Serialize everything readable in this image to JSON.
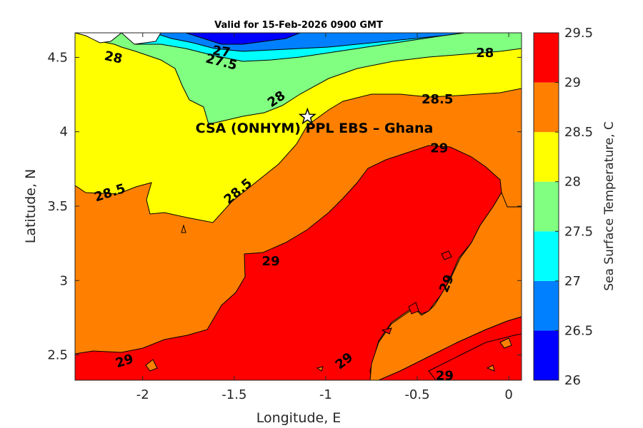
{
  "title": "Valid for 15-Feb-2026 0900 GMT",
  "xlabel": "Longitude, E",
  "ylabel": "Latitude, N",
  "colorbar_label": "Sea Surface Temperature, C",
  "site": {
    "label": "CSA (ONHYM) PPL EBS  – Ghana",
    "lon": -1.1,
    "lat": 4.1,
    "marker": "star-icon"
  },
  "x_ticks": [
    {
      "v": -2,
      "t": "-2"
    },
    {
      "v": -1.5,
      "t": "-1.5"
    },
    {
      "v": -1,
      "t": "-1"
    },
    {
      "v": -0.5,
      "t": "-0.5"
    },
    {
      "v": 0,
      "t": "0"
    }
  ],
  "y_ticks": [
    {
      "v": 2.5,
      "t": "2.5"
    },
    {
      "v": 3,
      "t": "3"
    },
    {
      "v": 3.5,
      "t": "3.5"
    },
    {
      "v": 4,
      "t": "4"
    },
    {
      "v": 4.5,
      "t": "4.5"
    }
  ],
  "colorbar": {
    "levels": [
      26,
      26.5,
      27,
      27.5,
      28,
      28.5,
      29,
      29.5
    ],
    "labels": [
      "26",
      "26.5",
      "27",
      "27.5",
      "28",
      "28.5",
      "29",
      "29.5"
    ],
    "colors": [
      "#0000ff",
      "#0080ff",
      "#00ffff",
      "#80ff80",
      "#ffff00",
      "#ff8000",
      "#ff0000"
    ]
  },
  "contour_labels": [
    {
      "t": "28",
      "lon": -2.16,
      "lat": 4.5,
      "rot": 12
    },
    {
      "t": "27",
      "lon": -1.57,
      "lat": 4.54,
      "rot": 8
    },
    {
      "t": "27.5",
      "lon": -1.57,
      "lat": 4.47,
      "rot": 14
    },
    {
      "t": "28",
      "lon": -1.27,
      "lat": 4.22,
      "rot": -34
    },
    {
      "t": "28.5",
      "lon": -0.39,
      "lat": 4.22,
      "rot": 0
    },
    {
      "t": "28",
      "lon": -0.13,
      "lat": 4.53,
      "rot": 0
    },
    {
      "t": "29",
      "lon": -0.38,
      "lat": 3.89,
      "rot": 0
    },
    {
      "t": "28.5",
      "lon": -2.18,
      "lat": 3.59,
      "rot": -18
    },
    {
      "t": "28.5",
      "lon": -1.48,
      "lat": 3.6,
      "rot": -40
    },
    {
      "t": "29",
      "lon": -1.3,
      "lat": 3.13,
      "rot": 0
    },
    {
      "t": "29",
      "lon": -0.34,
      "lat": 2.98,
      "rot": -68
    },
    {
      "t": "29",
      "lon": -2.1,
      "lat": 2.46,
      "rot": -18
    },
    {
      "t": "29",
      "lon": -0.9,
      "lat": 2.46,
      "rot": -38
    },
    {
      "t": "29",
      "lon": -0.35,
      "lat": 2.36,
      "rot": 0
    }
  ]
}
